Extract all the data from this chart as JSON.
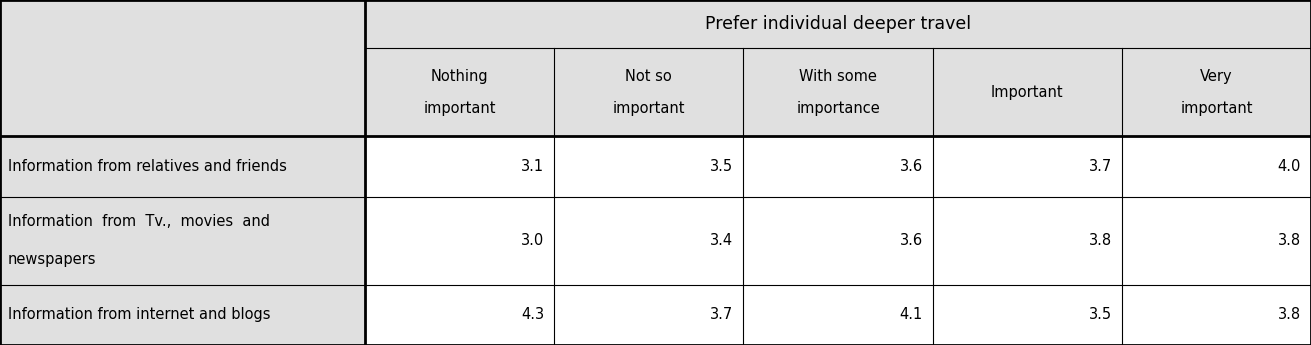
{
  "header_main": "Prefer individual deeper travel",
  "col_headers": [
    [
      "Nothing",
      "important"
    ],
    [
      "Not so",
      "important"
    ],
    [
      "With some",
      "importance"
    ],
    [
      "Important",
      ""
    ],
    [
      "Very",
      "important"
    ]
  ],
  "row_labels": [
    "Information from relatives and friends",
    "Information  from  Tv.,  movies  and\nnewspapers",
    "Information from internet and blogs"
  ],
  "data": [
    [
      3.1,
      3.5,
      3.6,
      3.7,
      4.0
    ],
    [
      3.0,
      3.4,
      3.6,
      3.8,
      3.8
    ],
    [
      4.3,
      3.7,
      4.1,
      3.5,
      3.8
    ]
  ],
  "bg_gray": "#e0e0e0",
  "bg_white": "#ffffff",
  "text_color": "#000000",
  "line_color": "#000000",
  "font_size": 10.5,
  "header_font_size": 12.5
}
